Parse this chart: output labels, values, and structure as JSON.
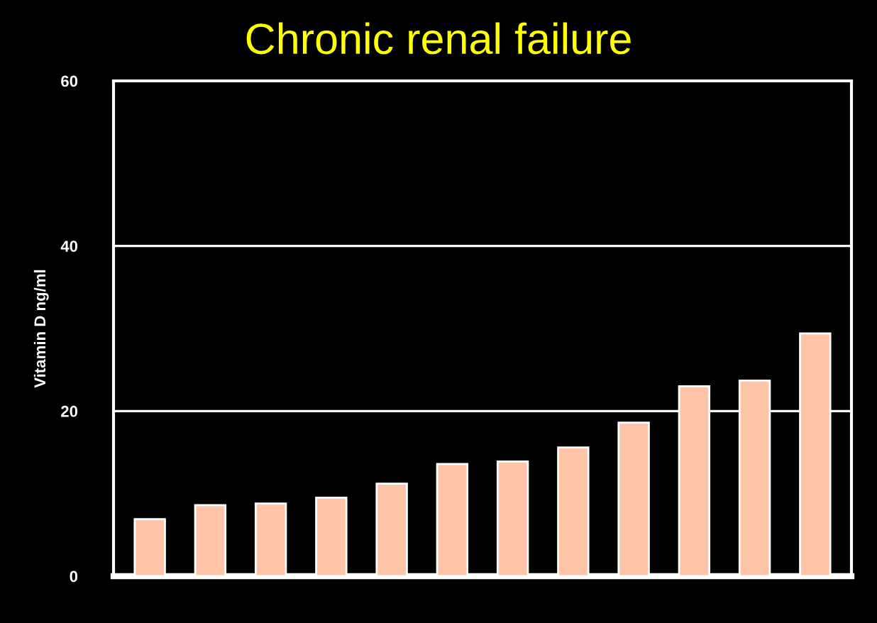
{
  "chart_data": {
    "type": "bar",
    "title": "Chronic renal failure",
    "ylabel": "Vitamin D ng/ml",
    "categories": [
      null,
      null,
      null,
      null,
      null,
      null,
      null,
      null,
      null,
      null,
      null,
      null
    ],
    "values": [
      6.9,
      8.6,
      8.8,
      9.5,
      11.2,
      13.6,
      13.9,
      15.6,
      18.6,
      23.0,
      23.7,
      29.4
    ],
    "color": "#ffc4a8",
    "ylim": [
      0,
      60
    ],
    "yticks": [
      0,
      20,
      40,
      60
    ],
    "grid": "y"
  }
}
